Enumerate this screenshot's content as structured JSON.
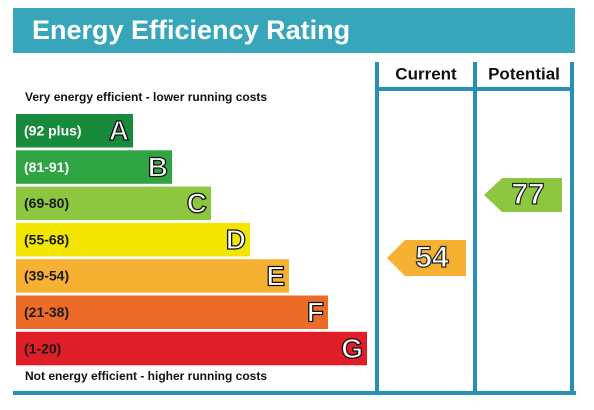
{
  "header": {
    "title": "Energy Efficiency Rating"
  },
  "columns": [
    "Current",
    "Potential"
  ],
  "top_note": "Very energy efficient - lower running costs",
  "bottom_note": "Not energy efficient - higher running costs",
  "bands": [
    {
      "range": "(92 plus)",
      "letter": "A",
      "color": "#178a3c"
    },
    {
      "range": "(81-91)",
      "letter": "B",
      "color": "#2ea443"
    },
    {
      "range": "(69-80)",
      "letter": "C",
      "color": "#8dc63f"
    },
    {
      "range": "(55-68)",
      "letter": "D",
      "color": "#f2e600"
    },
    {
      "range": "(39-54)",
      "letter": "E",
      "color": "#f6b032"
    },
    {
      "range": "(21-38)",
      "letter": "F",
      "color": "#ec6c27"
    },
    {
      "range": "(1-20)",
      "letter": "G",
      "color": "#e01e27"
    }
  ],
  "current": {
    "value": 54,
    "color": "#f6b032"
  },
  "potential": {
    "value": 77,
    "color": "#8dc63f"
  }
}
